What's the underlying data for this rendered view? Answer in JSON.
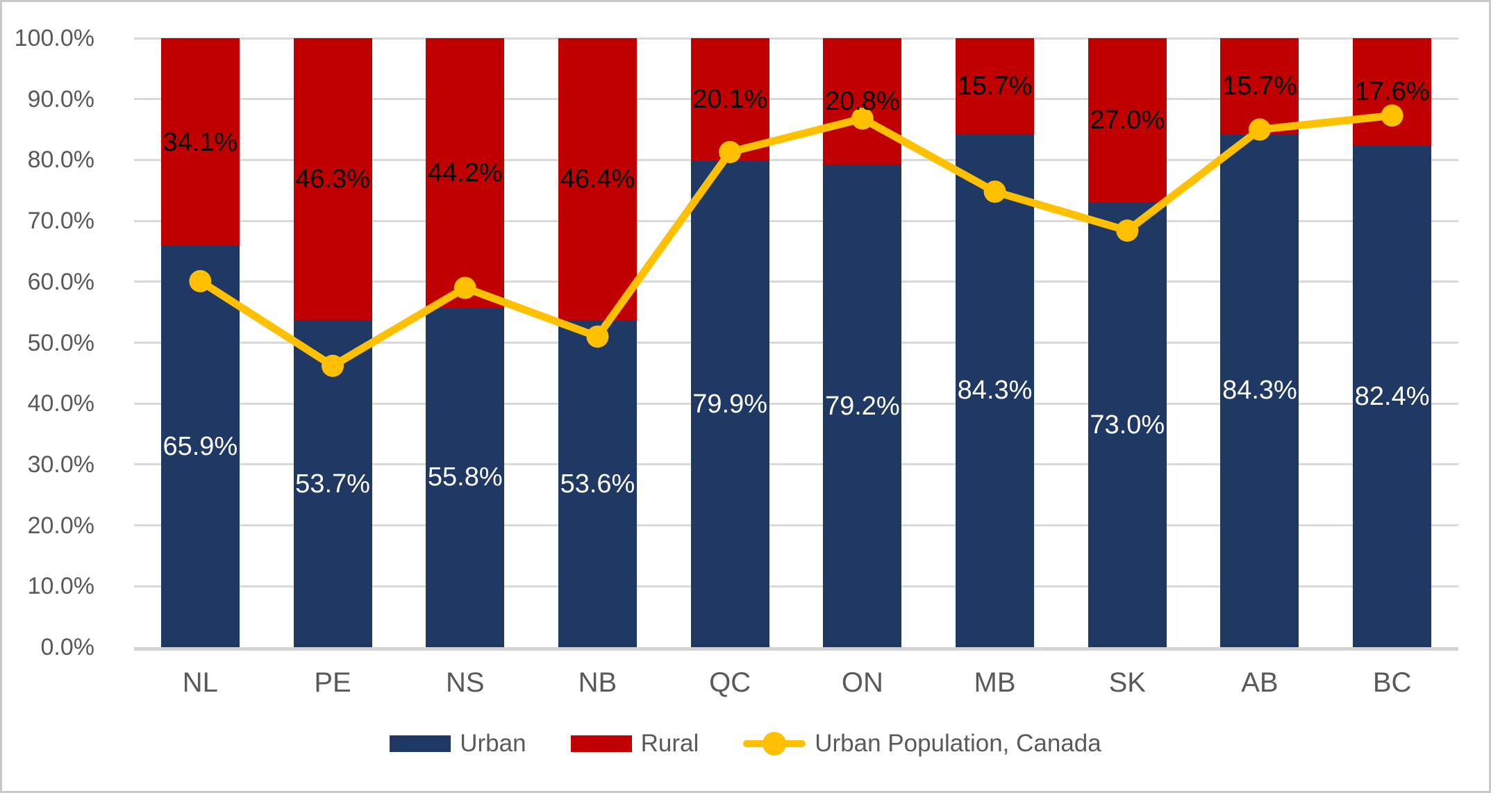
{
  "chart_data": {
    "type": "bar",
    "variant": "100-percent-stacked-column-with-line-overlay",
    "title": "",
    "categories": [
      "NL",
      "PE",
      "NS",
      "NB",
      "QC",
      "ON",
      "MB",
      "SK",
      "AB",
      "BC"
    ],
    "series": [
      {
        "name": "Urban",
        "kind": "bar",
        "color": "#1F3864",
        "label_color": "#FFFFFF",
        "values": [
          65.9,
          53.7,
          55.8,
          53.6,
          79.9,
          79.2,
          84.3,
          73.0,
          84.3,
          82.4
        ],
        "labels": [
          "65.9%",
          "53.7%",
          "55.8%",
          "53.6%",
          "79.9%",
          "79.2%",
          "84.3%",
          "73.0%",
          "84.3%",
          "82.4%"
        ]
      },
      {
        "name": "Rural",
        "kind": "bar",
        "color": "#C00000",
        "label_color": "#000000",
        "values": [
          34.1,
          46.3,
          44.2,
          46.4,
          20.1,
          20.8,
          15.7,
          27.0,
          15.7,
          17.6
        ],
        "labels": [
          "34.1%",
          "46.3%",
          "44.2%",
          "46.4%",
          "20.1%",
          "20.8%",
          "15.7%",
          "27.0%",
          "15.7%",
          "17.6%"
        ]
      },
      {
        "name": "Urban Population, Canada",
        "kind": "line",
        "color": "#FFC000",
        "values": [
          60.1,
          46.2,
          59.0,
          51.0,
          81.3,
          86.8,
          74.8,
          68.4,
          85.0,
          87.3
        ]
      }
    ],
    "ylim": [
      0,
      100
    ],
    "y_ticks": [
      "0.0%",
      "10.0%",
      "20.0%",
      "30.0%",
      "40.0%",
      "50.0%",
      "60.0%",
      "70.0%",
      "80.0%",
      "90.0%",
      "100.0%"
    ],
    "grid": true,
    "legend_position": "bottom"
  },
  "styles": {
    "background": "#FFFFFF",
    "frame_border_color": "#C9C9C9",
    "axis_text_color": "#595959",
    "gridline_color": "#D9D9D9",
    "baseline_color": "#D2D2D2"
  }
}
